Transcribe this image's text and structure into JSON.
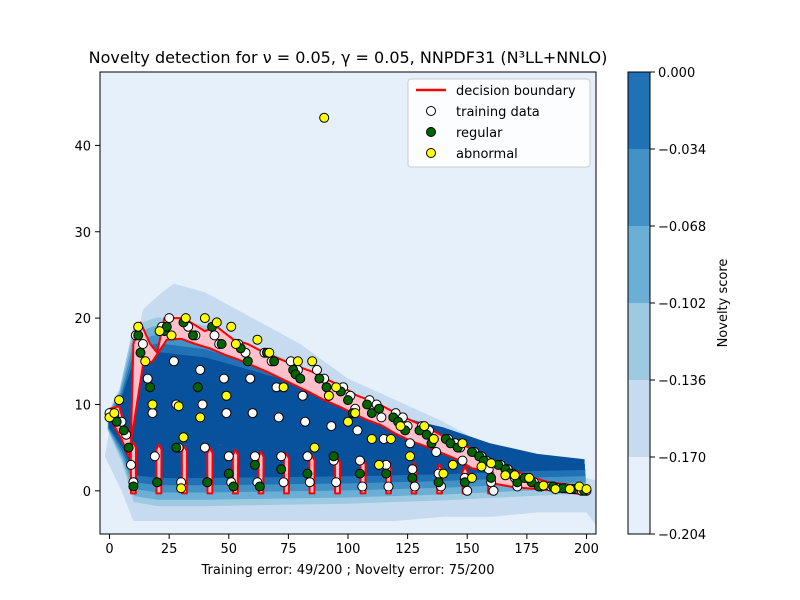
{
  "chart_data": {
    "type": "scatter",
    "title": "Novelty detection for ν = 0.05, γ = 0.05, NNPDF31 (N³LL+NNLO)",
    "xlabel": "Training error: 49/200 ; Novelty error: 75/200",
    "ylabel": "",
    "xlim": [
      -4,
      204
    ],
    "ylim": [
      -5,
      48.5
    ],
    "xticks": [
      0,
      25,
      50,
      75,
      100,
      125,
      150,
      175,
      200
    ],
    "yticks": [
      0,
      10,
      20,
      30,
      40
    ],
    "legend": {
      "placement": "upper right",
      "entries": [
        "decision boundary",
        "training data",
        "regular",
        "abnormal"
      ]
    },
    "colorbar": {
      "label": "Novelty score",
      "levels": [
        -0.204,
        -0.17,
        -0.136,
        -0.102,
        -0.068,
        -0.034,
        0.0
      ],
      "tick_labels": [
        "0.000",
        "−0.034",
        "−0.068",
        "−0.102",
        "−0.136",
        "−0.170",
        "−0.204"
      ],
      "colors": [
        "#e6f0fa",
        "#c6dbef",
        "#9ecae1",
        "#6baed6",
        "#4292c6",
        "#2171b5",
        "#08519c"
      ]
    },
    "colors": {
      "boundary": "#ff0000",
      "inside_fill": "#ffc0cb",
      "training": "#ffffff",
      "regular": "#006400",
      "abnormal": "#ffff00",
      "background": "#e6f0fa"
    },
    "series": [
      {
        "name": "training data",
        "points": [
          [
            0,
            9
          ],
          [
            2,
            8.5
          ],
          [
            5,
            8
          ],
          [
            7,
            6.5
          ],
          [
            9,
            3
          ],
          [
            10,
            1
          ],
          [
            11,
            18
          ],
          [
            14,
            17
          ],
          [
            16,
            13
          ],
          [
            18,
            9
          ],
          [
            19,
            4
          ],
          [
            20,
            1
          ],
          [
            22,
            19
          ],
          [
            25,
            20
          ],
          [
            27,
            15
          ],
          [
            28,
            10
          ],
          [
            29,
            5
          ],
          [
            30,
            1
          ],
          [
            33,
            19
          ],
          [
            36,
            18
          ],
          [
            38,
            14
          ],
          [
            39,
            10
          ],
          [
            40,
            5
          ],
          [
            41,
            1
          ],
          [
            44,
            18
          ],
          [
            46,
            17
          ],
          [
            48,
            13
          ],
          [
            49,
            9
          ],
          [
            50,
            4
          ],
          [
            51,
            1
          ],
          [
            54,
            17
          ],
          [
            57,
            16
          ],
          [
            59,
            13
          ],
          [
            60,
            9
          ],
          [
            61,
            4
          ],
          [
            62,
            1
          ],
          [
            65,
            16
          ],
          [
            68,
            15
          ],
          [
            70,
            12
          ],
          [
            71,
            8.5
          ],
          [
            72,
            4
          ],
          [
            73,
            1
          ],
          [
            76,
            15
          ],
          [
            79,
            14
          ],
          [
            81,
            11
          ],
          [
            82,
            8
          ],
          [
            83,
            4
          ],
          [
            84,
            1
          ],
          [
            87,
            14
          ],
          [
            90,
            13
          ],
          [
            92,
            11
          ],
          [
            93,
            7.5
          ],
          [
            94,
            3.5
          ],
          [
            95,
            1
          ],
          [
            98,
            12
          ],
          [
            101,
            11
          ],
          [
            103,
            9.5
          ],
          [
            104,
            7
          ],
          [
            105,
            3.5
          ],
          [
            106,
            0.5
          ],
          [
            109,
            10.5
          ],
          [
            112,
            10
          ],
          [
            114,
            8.5
          ],
          [
            115,
            6
          ],
          [
            116,
            3
          ],
          [
            117,
            0.5
          ],
          [
            120,
            9
          ],
          [
            123,
            8.5
          ],
          [
            125,
            7.5
          ],
          [
            126,
            5.5
          ],
          [
            127,
            2.5
          ],
          [
            128,
            0.5
          ],
          [
            131,
            7.5
          ],
          [
            134,
            7
          ],
          [
            136,
            6
          ],
          [
            137,
            4.5
          ],
          [
            138,
            2
          ],
          [
            139,
            0.5
          ],
          [
            142,
            6
          ],
          [
            145,
            5.5
          ],
          [
            147,
            5
          ],
          [
            148,
            3.5
          ],
          [
            149,
            1.5
          ],
          [
            150,
            0
          ],
          [
            153,
            4.5
          ],
          [
            156,
            4
          ],
          [
            158,
            3.5
          ],
          [
            159,
            2.5
          ],
          [
            160,
            1
          ],
          [
            161,
            0
          ],
          [
            164,
            3
          ],
          [
            167,
            2.5
          ],
          [
            169,
            2
          ],
          [
            170,
            1.5
          ],
          [
            171,
            0.5
          ],
          [
            175,
            1.5
          ],
          [
            178,
            1
          ],
          [
            181,
            0.5
          ],
          [
            185,
            0.5
          ],
          [
            188,
            0.3
          ],
          [
            191,
            0.3
          ],
          [
            195,
            0.2
          ],
          [
            198,
            0
          ],
          [
            200,
            0
          ]
        ]
      },
      {
        "name": "regular",
        "points": [
          [
            1,
            8.5
          ],
          [
            3,
            8
          ],
          [
            6,
            7
          ],
          [
            8,
            5
          ],
          [
            10,
            0.5
          ],
          [
            12,
            18
          ],
          [
            13,
            16
          ],
          [
            17,
            12
          ],
          [
            20,
            1
          ],
          [
            23,
            18.5
          ],
          [
            24,
            19
          ],
          [
            28,
            5
          ],
          [
            31,
            19.5
          ],
          [
            35,
            18
          ],
          [
            37,
            12
          ],
          [
            41,
            1
          ],
          [
            43,
            19
          ],
          [
            47,
            17
          ],
          [
            50,
            2
          ],
          [
            52,
            0.5
          ],
          [
            55,
            16.5
          ],
          [
            58,
            15
          ],
          [
            61,
            3
          ],
          [
            63,
            0.5
          ],
          [
            66,
            16
          ],
          [
            69,
            15
          ],
          [
            72,
            2.5
          ],
          [
            77,
            14
          ],
          [
            78,
            13.5
          ],
          [
            80,
            13
          ],
          [
            83,
            2
          ],
          [
            88,
            13
          ],
          [
            91,
            12
          ],
          [
            94,
            4
          ],
          [
            97,
            11.5
          ],
          [
            100,
            10.5
          ],
          [
            102,
            9
          ],
          [
            105,
            2
          ],
          [
            108,
            10
          ],
          [
            110,
            9
          ],
          [
            113,
            9.5
          ],
          [
            116,
            2
          ],
          [
            119,
            8.5
          ],
          [
            121,
            8
          ],
          [
            124,
            7
          ],
          [
            127,
            1.5
          ],
          [
            130,
            7
          ],
          [
            133,
            6.5
          ],
          [
            135,
            5.5
          ],
          [
            138,
            1
          ],
          [
            141,
            6
          ],
          [
            143,
            5.5
          ],
          [
            146,
            5
          ],
          [
            149,
            1
          ],
          [
            152,
            4.5
          ],
          [
            155,
            4
          ],
          [
            157,
            3.5
          ],
          [
            160,
            1.5
          ],
          [
            163,
            3
          ],
          [
            166,
            2.5
          ],
          [
            168,
            2
          ],
          [
            171,
            1
          ],
          [
            174,
            1.5
          ],
          [
            177,
            1
          ],
          [
            180,
            0.5
          ],
          [
            186,
            0.5
          ],
          [
            190,
            0.3
          ],
          [
            194,
            0.2
          ],
          [
            199,
            0
          ]
        ]
      },
      {
        "name": "abnormal",
        "points": [
          [
            90,
            43.2
          ],
          [
            0,
            8.5
          ],
          [
            2,
            9
          ],
          [
            4,
            10.5
          ],
          [
            12,
            19
          ],
          [
            15,
            15
          ],
          [
            18,
            10
          ],
          [
            21,
            18.5
          ],
          [
            26,
            18
          ],
          [
            29,
            9.8
          ],
          [
            30,
            0.3
          ],
          [
            31,
            6.2
          ],
          [
            32,
            20
          ],
          [
            38,
            8.5
          ],
          [
            40,
            20
          ],
          [
            45,
            19.5
          ],
          [
            49,
            11
          ],
          [
            51,
            19
          ],
          [
            53,
            17
          ],
          [
            62,
            17.5
          ],
          [
            67,
            16
          ],
          [
            73,
            12
          ],
          [
            79,
            15
          ],
          [
            85,
            15
          ],
          [
            86,
            5
          ],
          [
            92,
            11
          ],
          [
            95,
            12
          ],
          [
            100,
            8
          ],
          [
            103,
            9
          ],
          [
            110,
            6
          ],
          [
            113,
            3
          ],
          [
            118,
            6
          ],
          [
            122,
            7.5
          ],
          [
            126,
            4
          ],
          [
            132,
            7.5
          ],
          [
            136,
            6
          ],
          [
            140,
            2
          ],
          [
            144,
            3
          ],
          [
            148,
            5.5
          ],
          [
            152,
            1.5
          ],
          [
            156,
            2.8
          ],
          [
            160,
            3.2
          ],
          [
            166,
            1.8
          ],
          [
            170,
            1.8
          ],
          [
            176,
            1.5
          ],
          [
            182,
            0.6
          ],
          [
            187,
            0.2
          ],
          [
            193,
            0.2
          ],
          [
            197,
            0.5
          ],
          [
            200,
            0.2
          ]
        ]
      }
    ]
  }
}
